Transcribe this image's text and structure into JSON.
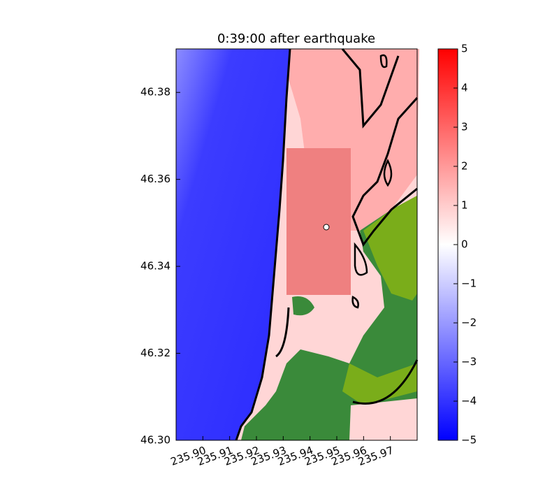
{
  "chart_data": {
    "type": "heatmap",
    "title": "0:39:00 after earthquake",
    "xlim": [
      235.89,
      235.98
    ],
    "xticks": [
      {
        "value": 235.9,
        "label": "235.90"
      },
      {
        "value": 235.91,
        "label": "235.91"
      },
      {
        "value": 235.92,
        "label": "235.92"
      },
      {
        "value": 235.93,
        "label": "235.93"
      },
      {
        "value": 235.94,
        "label": "235.94"
      },
      {
        "value": 235.95,
        "label": "235.95"
      },
      {
        "value": 235.96,
        "label": "235.96"
      },
      {
        "value": 235.97,
        "label": "235.97"
      }
    ],
    "ylim": [
      46.3,
      46.39
    ],
    "yticks": [
      {
        "value": 46.3,
        "label": "46.30"
      },
      {
        "value": 46.32,
        "label": "46.32"
      },
      {
        "value": 46.34,
        "label": "46.34"
      },
      {
        "value": 46.36,
        "label": "46.36"
      },
      {
        "value": 46.38,
        "label": "46.38"
      }
    ],
    "colorbar": {
      "lim": [
        -5,
        5
      ],
      "colors": [
        "#0000ff",
        "#ffffff",
        "#ff0000"
      ],
      "ticks": [
        {
          "value": -5,
          "label": "−5"
        },
        {
          "value": -4,
          "label": "−4"
        },
        {
          "value": -3,
          "label": "−3"
        },
        {
          "value": -2,
          "label": "−2"
        },
        {
          "value": -1,
          "label": "−1"
        },
        0,
        1,
        2,
        3,
        4,
        5
      ]
    }
  }
}
